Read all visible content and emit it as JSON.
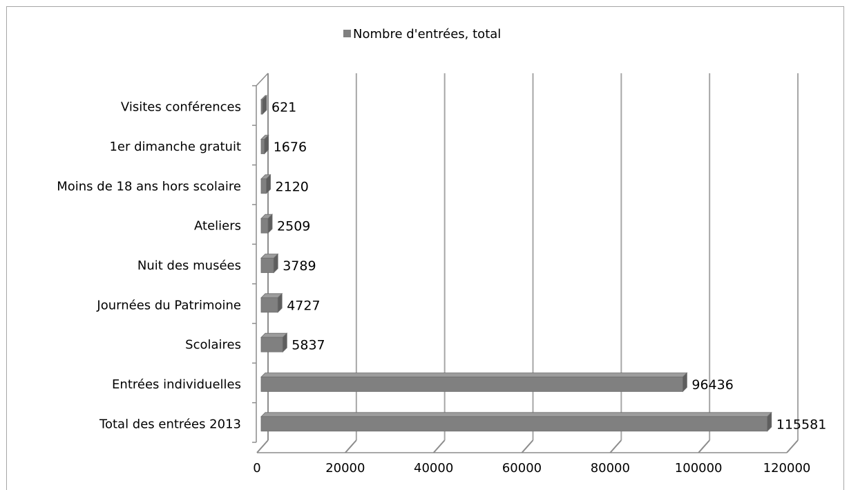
{
  "chart_data": {
    "type": "bar",
    "orientation": "horizontal",
    "categories": [
      "Total des entrées 2013",
      "Entrées individuelles",
      "Scolaires",
      "Journées du Patrimoine",
      "Nuit des musées",
      "Ateliers",
      "Moins de 18 ans hors scolaire",
      "1er dimanche gratuit",
      "Visites conférences"
    ],
    "series": [
      {
        "name": "Nombre d'entrées, total",
        "values": [
          115581,
          96436,
          5837,
          4727,
          3789,
          2509,
          2120,
          1676,
          621
        ],
        "data_labels": [
          "115581",
          "96436",
          "5837",
          "4727",
          "3789",
          "2509",
          "2120",
          "1676",
          "621"
        ]
      }
    ],
    "x_ticks": [
      "0",
      "20000",
      "40000",
      "60000",
      "80000",
      "100000",
      "120000"
    ],
    "xlim": [
      0,
      120000
    ],
    "title": "",
    "xlabel": "",
    "ylabel": "",
    "grid": "vertical",
    "legend_position": "top",
    "style": "3d-bar",
    "colors": {
      "bar_front": "#808080",
      "bar_top": "#9c9c9c",
      "bar_side": "#5e5e5e",
      "bar_edge": "#6e6e6e",
      "grid": "#a6a6a6",
      "axis": "#8c8c8c"
    }
  }
}
